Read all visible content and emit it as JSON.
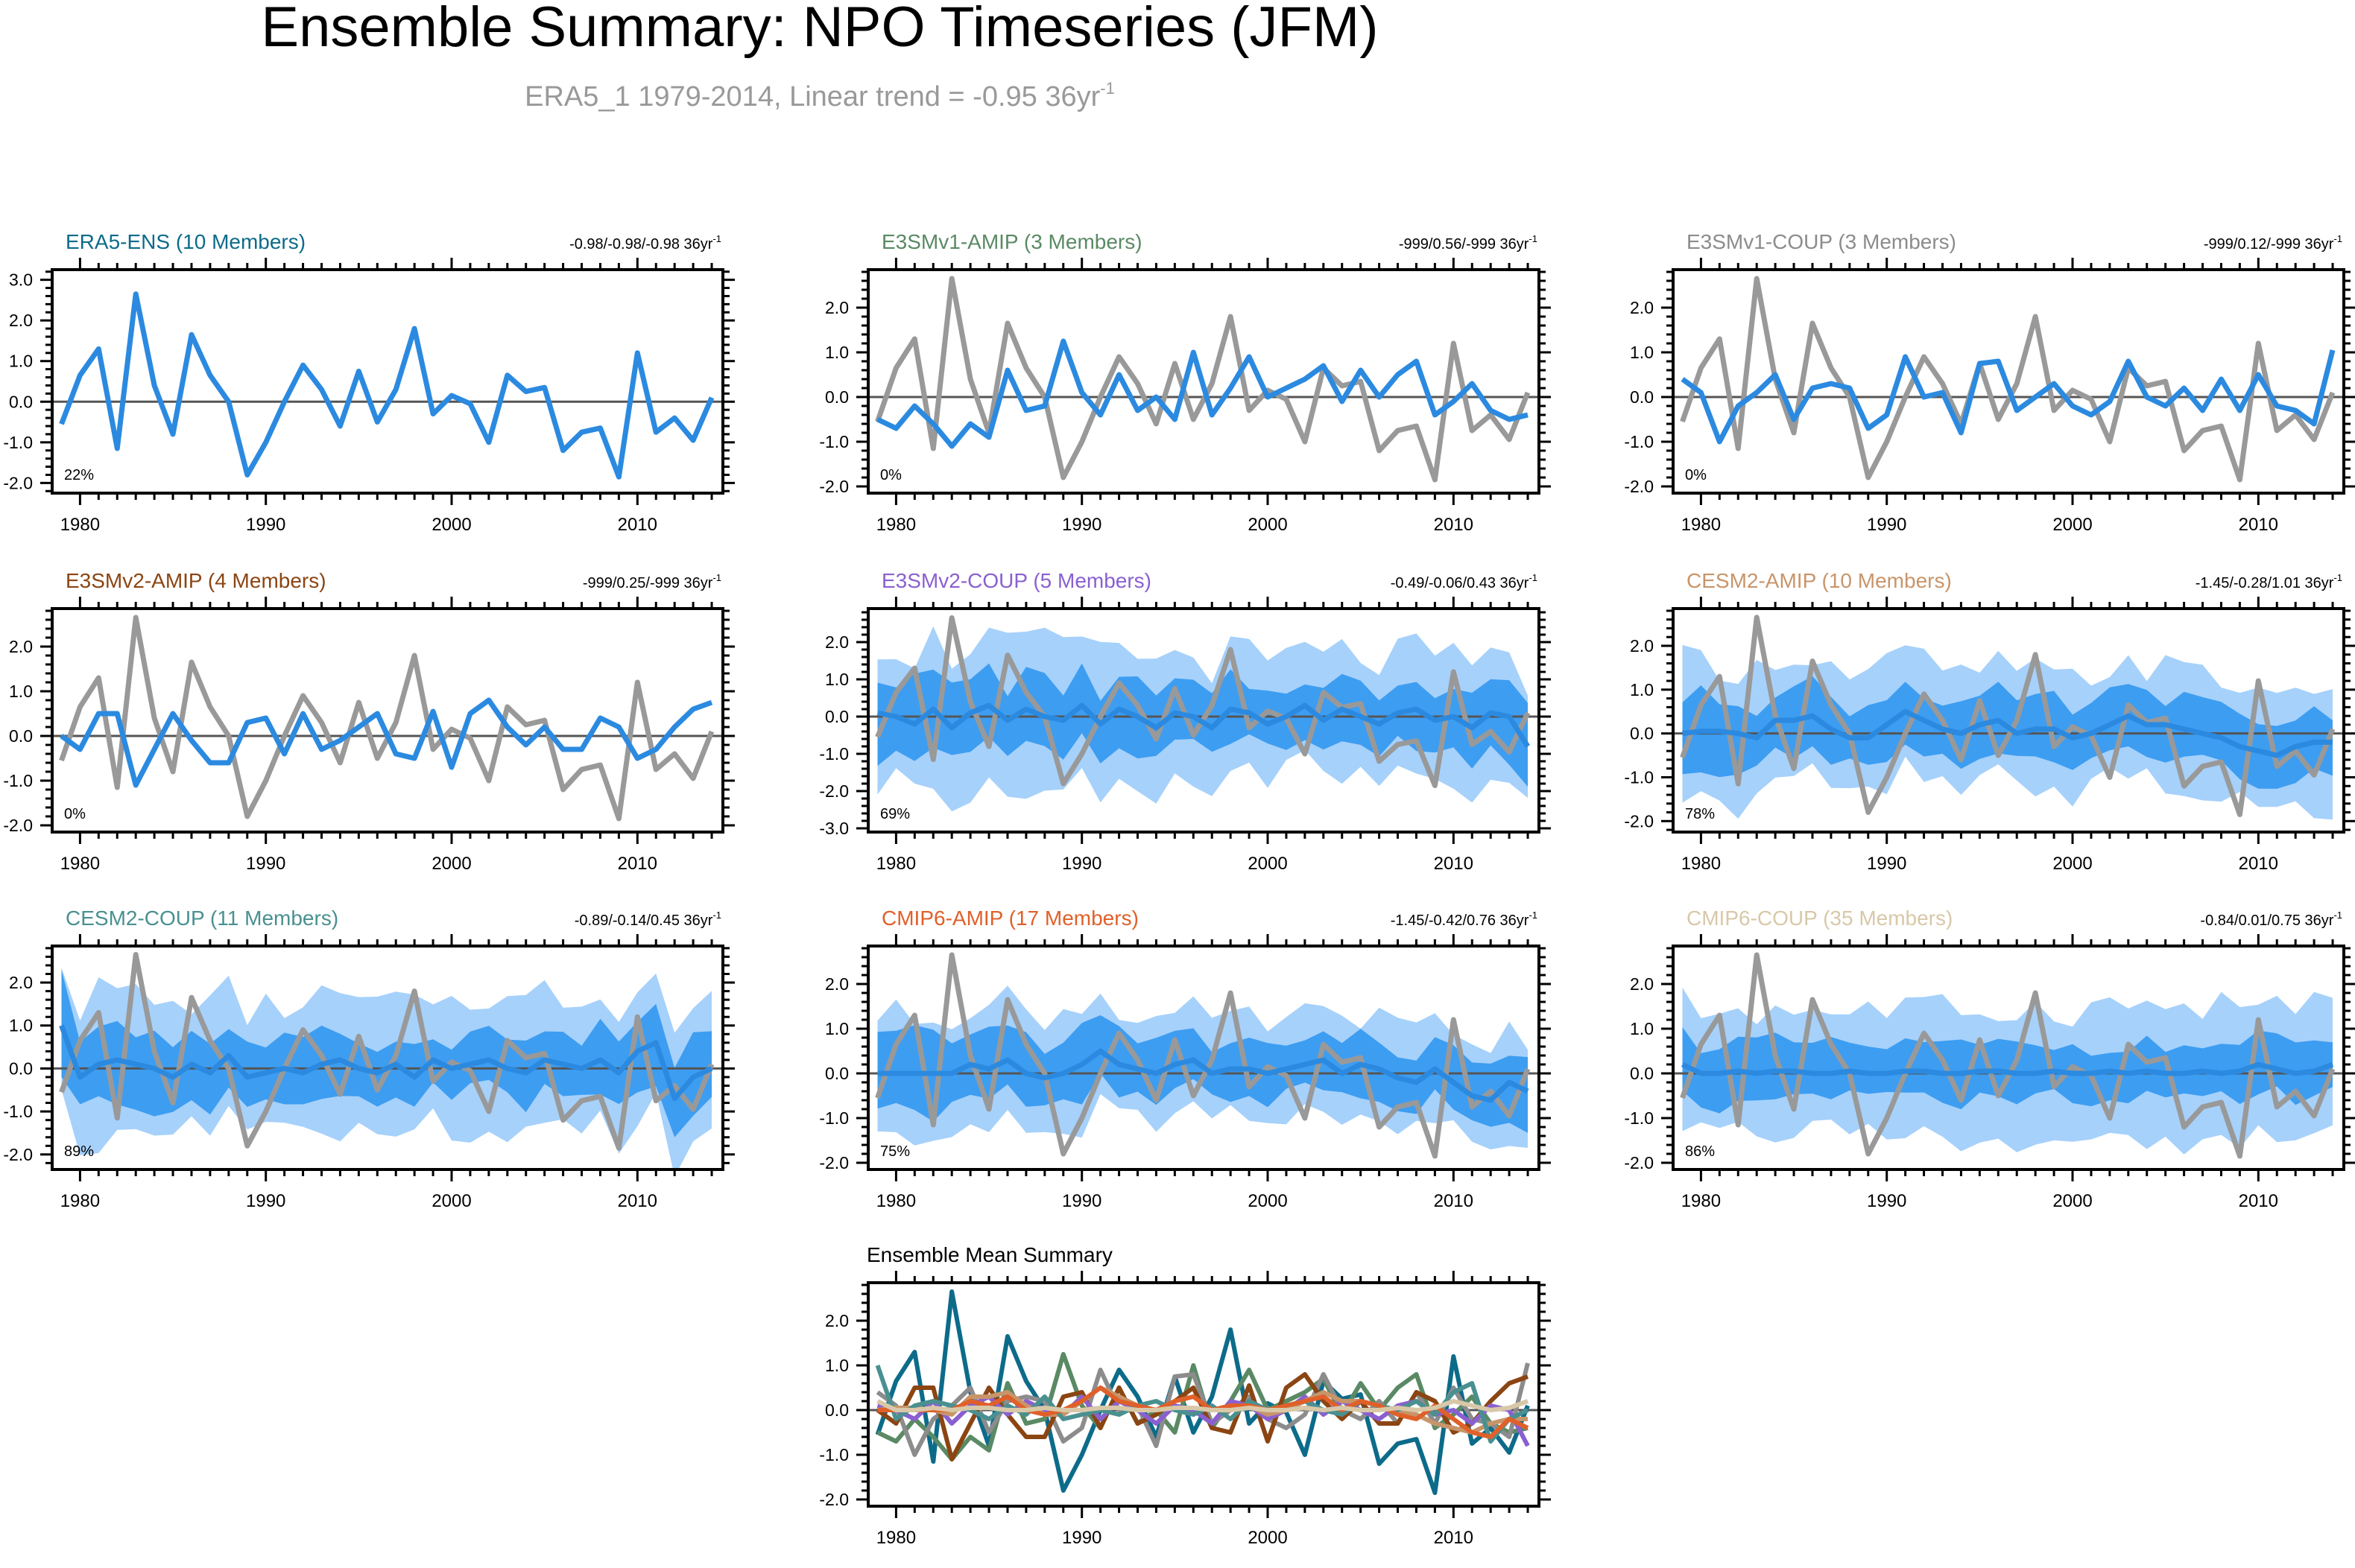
{
  "figure": {
    "title": "Ensemble Summary: NPO Timeseries (JFM)",
    "subtitle_main": "ERA5_1 1979-2014, Linear trend = -0.95 36yr",
    "subtitle_sup": "-1"
  },
  "colors": {
    "obs": "#999999",
    "ens_mean": "#2b8ae0",
    "band_outer": "#a6d1fb",
    "band_inner": "#3d9df1",
    "zero_line": "#555555"
  },
  "chart_data": [
    {
      "type": "line",
      "title": "ERA5-ENS (10 Members)",
      "title_color": "#0d6b8a",
      "trend_text": "-0.98/-0.98/-0.98 36yr",
      "trend_sup": "-1",
      "pct": "22%",
      "ylim": [
        -2.25,
        3.25
      ],
      "yticks": [
        -2.0,
        -1.0,
        0.0,
        1.0,
        2.0,
        3.0
      ],
      "xticks": [
        1980,
        1990,
        2000,
        2010
      ],
      "xlim": [
        1978.5,
        2014.6
      ],
      "show_obs": false,
      "mean": "era5",
      "band": null
    },
    {
      "type": "line",
      "title": "E3SMv1-AMIP (3 Members)",
      "title_color": "#5a8a64",
      "trend_text": "-999/0.56/-999 36yr",
      "trend_sup": "-1",
      "pct": "0%",
      "ylim": [
        -2.15,
        2.85
      ],
      "yticks": [
        -2.0,
        -1.0,
        0.0,
        1.0,
        2.0
      ],
      "xticks": [
        1980,
        1990,
        2000,
        2010
      ],
      "xlim": [
        1978.5,
        2014.6
      ],
      "show_obs": true,
      "mean": [
        -0.5,
        -0.7,
        -0.2,
        -0.6,
        -1.1,
        -0.6,
        -0.9,
        0.6,
        -0.3,
        -0.2,
        1.25,
        0.1,
        -0.4,
        0.5,
        -0.3,
        0.0,
        -0.5,
        1.0,
        -0.4,
        0.2,
        0.9,
        0.0,
        0.2,
        0.4,
        0.7,
        -0.1,
        0.6,
        0.0,
        0.5,
        0.8,
        -0.4,
        -0.1,
        0.3,
        -0.3,
        -0.5,
        -0.4
      ],
      "band": null
    },
    {
      "type": "line",
      "title": "E3SMv1-COUP (3 Members)",
      "title_color": "#8c8c8c",
      "trend_text": "-999/0.12/-999 36yr",
      "trend_sup": "-1",
      "pct": "0%",
      "ylim": [
        -2.15,
        2.85
      ],
      "yticks": [
        -2.0,
        -1.0,
        0.0,
        1.0,
        2.0
      ],
      "xticks": [
        1980,
        1990,
        2000,
        2010
      ],
      "xlim": [
        1978.5,
        2014.6
      ],
      "show_obs": true,
      "mean": [
        0.4,
        0.1,
        -1.0,
        -0.2,
        0.1,
        0.5,
        -0.5,
        0.2,
        0.3,
        0.2,
        -0.7,
        -0.4,
        0.9,
        0.0,
        0.1,
        -0.8,
        0.75,
        0.8,
        -0.3,
        0.0,
        0.3,
        -0.2,
        -0.4,
        -0.1,
        0.8,
        0.0,
        -0.2,
        0.2,
        -0.3,
        0.4,
        -0.3,
        0.5,
        -0.2,
        -0.3,
        -0.6,
        1.05
      ],
      "band": null
    },
    {
      "type": "line",
      "title": "E3SMv2-AMIP (4 Members)",
      "title_color": "#8b4513",
      "trend_text": "-999/0.25/-999 36yr",
      "trend_sup": "-1",
      "pct": "0%",
      "ylim": [
        -2.15,
        2.85
      ],
      "yticks": [
        -2.0,
        -1.0,
        0.0,
        1.0,
        2.0
      ],
      "xticks": [
        1980,
        1990,
        2000,
        2010
      ],
      "xlim": [
        1978.5,
        2014.6
      ],
      "show_obs": true,
      "mean": [
        0.0,
        -0.3,
        0.5,
        0.5,
        -1.1,
        -0.3,
        0.5,
        -0.1,
        -0.6,
        -0.6,
        0.3,
        0.4,
        -0.4,
        0.5,
        -0.3,
        -0.1,
        0.2,
        0.5,
        -0.4,
        -0.5,
        0.55,
        -0.7,
        0.5,
        0.8,
        0.2,
        -0.2,
        0.2,
        -0.3,
        -0.3,
        0.4,
        0.2,
        -0.5,
        -0.3,
        0.2,
        0.6,
        0.75
      ],
      "band": null
    },
    {
      "type": "line",
      "title": "E3SMv2-COUP (5 Members)",
      "title_color": "#8a60d0",
      "trend_text": "-0.49/-0.06/0.43 36yr",
      "trend_sup": "-1",
      "pct": "69%",
      "ylim": [
        -3.1,
        2.9
      ],
      "yticks": [
        -3.0,
        -2.0,
        -1.0,
        0.0,
        1.0,
        2.0
      ],
      "xticks": [
        1980,
        1990,
        2000,
        2010
      ],
      "xlim": [
        1978.5,
        2014.6
      ],
      "show_obs": true,
      "mean": [
        0.1,
        0.0,
        -0.2,
        0.2,
        -0.3,
        0.1,
        0.3,
        -0.1,
        0.2,
        0.0,
        -0.1,
        0.3,
        -0.2,
        0.2,
        0.0,
        -0.3,
        0.1,
        0.0,
        -0.3,
        0.2,
        0.1,
        -0.2,
        0.0,
        0.3,
        -0.1,
        0.2,
        0.0,
        -0.2,
        0.1,
        0.2,
        -0.1,
        0.0,
        -0.3,
        0.1,
        0.0,
        -0.8
      ],
      "band": {
        "outer": [
          1.9,
          1.9,
          1.6,
          1.6,
          1.6
        ],
        "inner": [
          1.1,
          0.9,
          0.8,
          0.8,
          1.0
        ]
      }
    },
    {
      "type": "line",
      "title": "CESM2-AMIP (10 Members)",
      "title_color": "#c8956a",
      "trend_text": "-1.45/-0.28/1.01 36yr",
      "trend_sup": "-1",
      "pct": "78%",
      "ylim": [
        -2.25,
        2.85
      ],
      "yticks": [
        -2.0,
        -1.0,
        0.0,
        1.0,
        2.0
      ],
      "xticks": [
        1980,
        1990,
        2000,
        2010
      ],
      "xlim": [
        1978.5,
        2014.6
      ],
      "show_obs": true,
      "mean": [
        0.0,
        0.05,
        0.05,
        0.0,
        -0.1,
        0.3,
        0.3,
        0.4,
        0.1,
        -0.1,
        -0.1,
        0.2,
        0.5,
        0.3,
        0.1,
        0.0,
        0.2,
        0.3,
        0.0,
        0.1,
        0.1,
        -0.1,
        0.0,
        0.2,
        0.4,
        0.2,
        0.2,
        0.1,
        0.0,
        -0.1,
        -0.3,
        -0.4,
        -0.5,
        -0.3,
        -0.2,
        -0.2
      ],
      "band": {
        "outer": [
          1.6,
          1.4,
          1.3,
          1.3,
          1.4
        ],
        "inner": [
          0.8,
          0.7,
          0.65,
          0.65,
          0.7
        ]
      }
    },
    {
      "type": "line",
      "title": "CESM2-COUP (11 Members)",
      "title_color": "#4a9090",
      "trend_text": "-0.89/-0.14/0.45 36yr",
      "trend_sup": "-1",
      "pct": "89%",
      "ylim": [
        -2.35,
        2.85
      ],
      "yticks": [
        -2.0,
        -1.0,
        0.0,
        1.0,
        2.0
      ],
      "xticks": [
        1980,
        1990,
        2000,
        2010
      ],
      "xlim": [
        1978.5,
        2014.6
      ],
      "show_obs": true,
      "mean": [
        1.0,
        -0.2,
        0.1,
        0.2,
        0.1,
        0.0,
        -0.2,
        0.1,
        -0.1,
        0.3,
        -0.2,
        -0.1,
        0.0,
        -0.1,
        0.1,
        0.2,
        0.0,
        -0.1,
        0.1,
        -0.2,
        0.2,
        0.0,
        0.1,
        0.2,
        0.0,
        -0.1,
        0.2,
        0.1,
        0.0,
        0.2,
        -0.1,
        0.4,
        0.6,
        -0.7,
        -0.2,
        0.0
      ],
      "band": {
        "outer": [
          1.7,
          1.5,
          1.5,
          1.6,
          1.6
        ],
        "inner": [
          1.0,
          0.7,
          0.65,
          0.7,
          0.8
        ]
      }
    },
    {
      "type": "line",
      "title": "CMIP6-AMIP (17 Members)",
      "title_color": "#e0602a",
      "trend_text": "-1.45/-0.42/0.76 36yr",
      "trend_sup": "-1",
      "pct": "75%",
      "ylim": [
        -2.15,
        2.85
      ],
      "yticks": [
        -2.0,
        -1.0,
        0.0,
        1.0,
        2.0
      ],
      "xticks": [
        1980,
        1990,
        2000,
        2010
      ],
      "xlim": [
        1978.5,
        2014.6
      ],
      "show_obs": true,
      "mean": [
        0.0,
        0.0,
        0.0,
        0.0,
        0.0,
        0.2,
        0.1,
        0.3,
        0.0,
        -0.1,
        0.0,
        0.2,
        0.5,
        0.2,
        0.1,
        0.0,
        0.2,
        0.3,
        0.0,
        0.1,
        0.1,
        0.0,
        0.1,
        0.2,
        0.3,
        0.0,
        0.2,
        0.1,
        -0.1,
        -0.2,
        0.1,
        -0.2,
        -0.5,
        -0.6,
        -0.2,
        -0.4
      ],
      "band": {
        "outer": [
          1.3,
          1.4,
          1.1,
          1.1,
          1.2
        ],
        "inner": [
          0.8,
          0.8,
          0.6,
          0.6,
          0.7
        ]
      }
    },
    {
      "type": "line",
      "title": "CMIP6-COUP (35 Members)",
      "title_color": "#d8c8a8",
      "trend_text": "-0.84/0.01/0.75 36yr",
      "trend_sup": "-1",
      "pct": "86%",
      "ylim": [
        -2.15,
        2.85
      ],
      "yticks": [
        -2.0,
        -1.0,
        0.0,
        1.0,
        2.0
      ],
      "xticks": [
        1980,
        1990,
        2000,
        2010
      ],
      "xlim": [
        1978.5,
        2014.6
      ],
      "show_obs": true,
      "mean": [
        0.2,
        0.0,
        0.0,
        0.05,
        0.0,
        0.05,
        0.05,
        0.0,
        0.0,
        0.05,
        0.0,
        0.0,
        0.05,
        0.05,
        0.0,
        0.0,
        0.05,
        0.05,
        0.0,
        0.0,
        0.05,
        0.0,
        0.0,
        0.05,
        0.0,
        0.05,
        0.0,
        0.0,
        0.05,
        0.0,
        0.05,
        0.2,
        0.1,
        0.0,
        0.05,
        0.2
      ],
      "band": {
        "outer": [
          1.4,
          1.4,
          1.4,
          1.5,
          1.4
        ],
        "inner": [
          0.7,
          0.6,
          0.6,
          0.6,
          0.6
        ]
      }
    },
    {
      "type": "line",
      "title": "Ensemble Mean Summary",
      "title_color": "#000000",
      "trend_text": "",
      "trend_sup": "",
      "pct": "",
      "ylim": [
        -2.15,
        2.85
      ],
      "yticks": [
        -2.0,
        -1.0,
        0.0,
        1.0,
        2.0
      ],
      "xticks": [
        1980,
        1990,
        2000,
        2010
      ],
      "xlim": [
        1978.5,
        2014.6
      ],
      "show_obs": true,
      "mean": null,
      "band": null,
      "summary": true
    }
  ],
  "obs_series": {
    "name": "ERA5_1",
    "x_start": 1979,
    "values": [
      -0.55,
      0.65,
      1.3,
      -1.15,
      2.65,
      0.4,
      -0.8,
      1.65,
      0.65,
      0.0,
      -1.8,
      -1.0,
      0.0,
      0.9,
      0.3,
      -0.6,
      0.75,
      -0.5,
      0.3,
      1.8,
      -0.3,
      0.15,
      -0.05,
      -1.0,
      0.65,
      0.25,
      0.35,
      -1.2,
      -0.75,
      -0.65,
      -1.85,
      1.2,
      -0.75,
      -0.4,
      -0.95,
      0.1
    ]
  },
  "summary_series": [
    {
      "name": "ERA5-ENS",
      "color": "#0d6b8a"
    },
    {
      "name": "E3SMv1-AMIP",
      "color": "#5a8a64"
    },
    {
      "name": "E3SMv1-COUP",
      "color": "#8c8c8c"
    },
    {
      "name": "E3SMv2-AMIP",
      "color": "#8b4513"
    },
    {
      "name": "E3SMv2-COUP",
      "color": "#8a60d0"
    },
    {
      "name": "CESM2-AMIP",
      "color": "#c8956a"
    },
    {
      "name": "CESM2-COUP",
      "color": "#4a9090"
    },
    {
      "name": "CMIP6-AMIP",
      "color": "#e0602a"
    },
    {
      "name": "CMIP6-COUP",
      "color": "#d8c8a8"
    }
  ]
}
